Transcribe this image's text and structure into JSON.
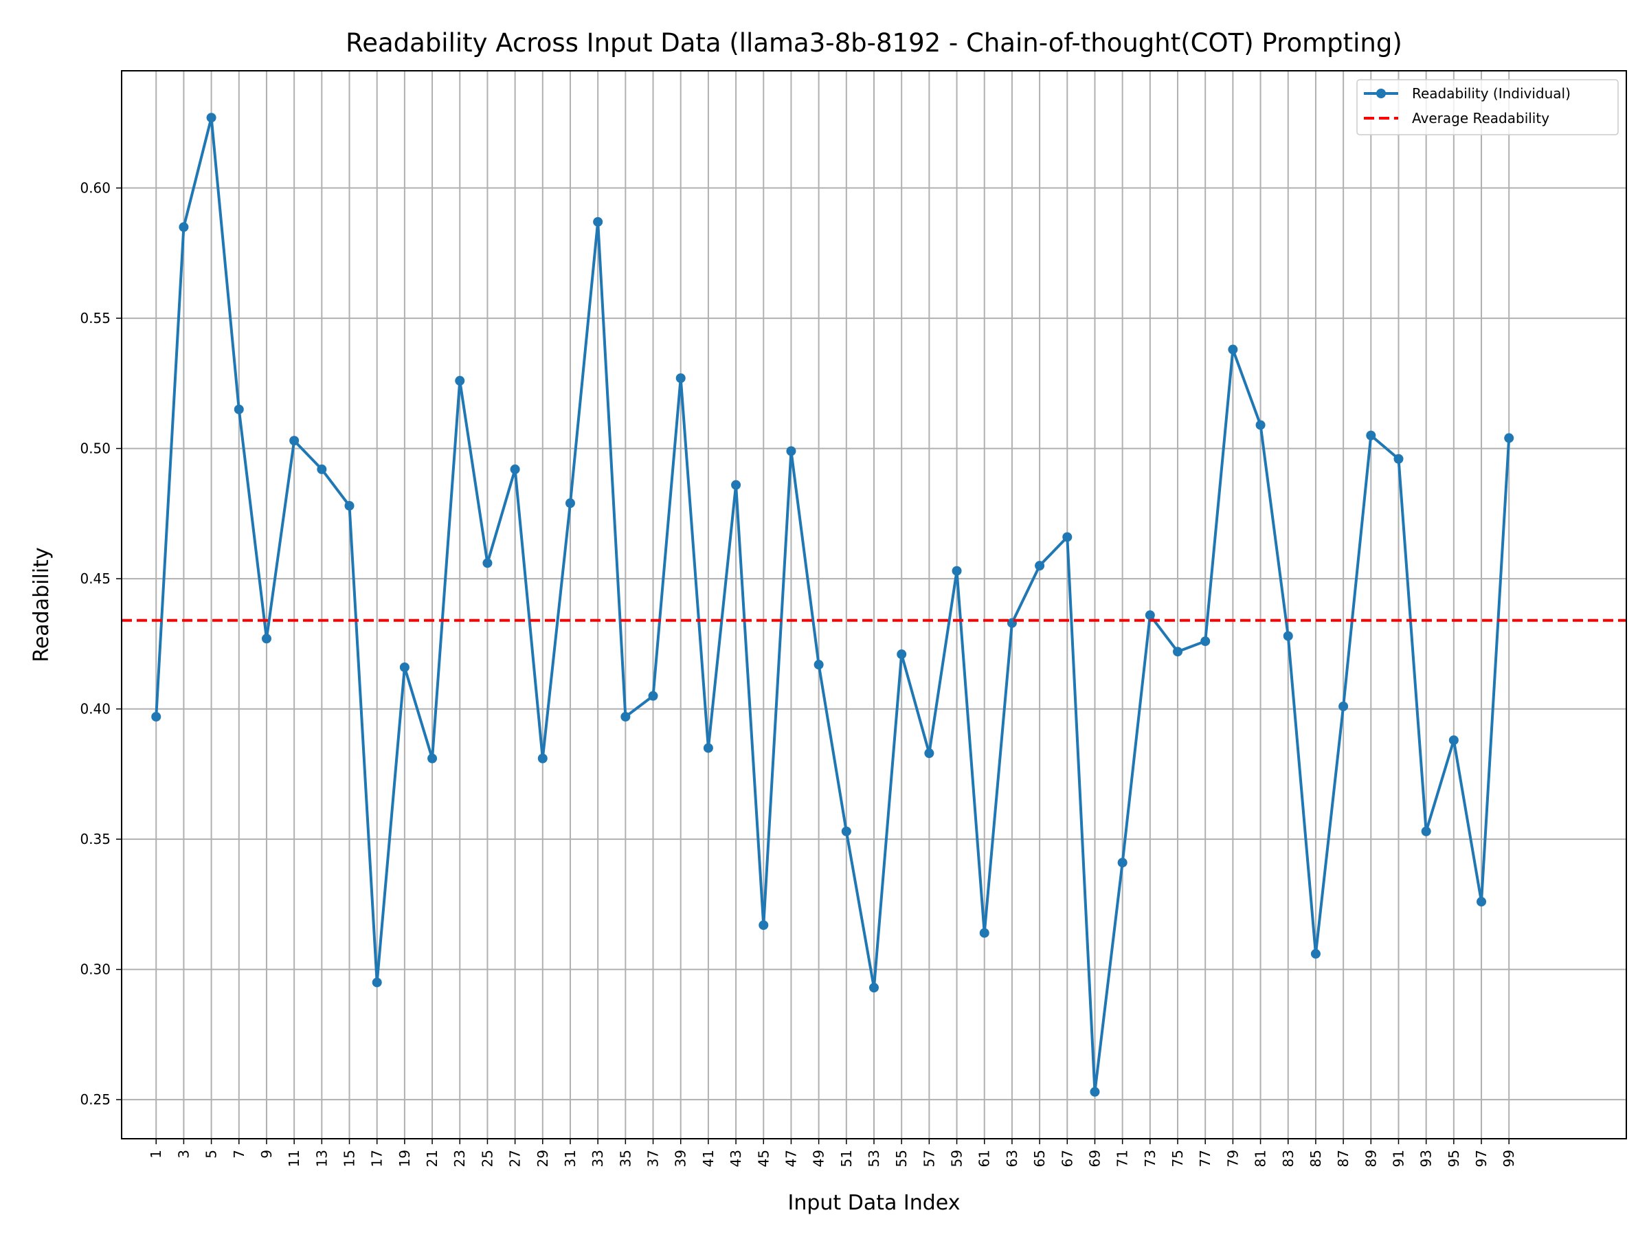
{
  "chart_data": {
    "type": "line",
    "title": "Readability Across Input Data (llama3-8b-8192 - Chain-of-thought(COT) Prompting)",
    "xlabel": "Input Data Index",
    "ylabel": "Readability",
    "xlim": [
      -1.5,
      107.5
    ],
    "ylim": [
      0.235,
      0.645
    ],
    "grid": true,
    "legend_position": "upper-right",
    "x_ticks": [
      1,
      3,
      5,
      7,
      9,
      11,
      13,
      15,
      17,
      19,
      21,
      23,
      25,
      27,
      29,
      31,
      33,
      35,
      37,
      39,
      41,
      43,
      45,
      47,
      49,
      51,
      53,
      55,
      57,
      59,
      61,
      63,
      65,
      67,
      69,
      71,
      73,
      75,
      77,
      79,
      81,
      83,
      85,
      87,
      89,
      91,
      93,
      95,
      97,
      99
    ],
    "y_ticks": [
      0.25,
      0.3,
      0.35,
      0.4,
      0.45,
      0.5,
      0.55,
      0.6
    ],
    "y_tick_labels": [
      "0.25",
      "0.30",
      "0.35",
      "0.40",
      "0.45",
      "0.50",
      "0.55",
      "0.60"
    ],
    "series": [
      {
        "name": "Readability (Individual)",
        "color": "#1f77b4",
        "style": "solid-with-markers",
        "x": [
          1,
          3,
          5,
          7,
          9,
          11,
          13,
          15,
          17,
          19,
          21,
          23,
          25,
          27,
          29,
          31,
          33,
          35,
          37,
          39,
          41,
          43,
          45,
          47,
          49,
          51,
          53,
          55,
          57,
          59,
          61,
          63,
          65,
          67,
          69,
          71,
          73,
          75,
          77,
          79,
          81,
          83,
          85,
          87,
          89,
          91,
          93,
          95,
          97,
          99
        ],
        "values": [
          0.397,
          0.585,
          0.627,
          0.515,
          0.427,
          0.503,
          0.492,
          0.478,
          0.295,
          0.416,
          0.381,
          0.526,
          0.456,
          0.492,
          0.381,
          0.479,
          0.587,
          0.397,
          0.405,
          0.527,
          0.385,
          0.486,
          0.317,
          0.499,
          0.417,
          0.353,
          0.293,
          0.421,
          0.383,
          0.453,
          0.314,
          0.433,
          0.455,
          0.466,
          0.253,
          0.341,
          0.436,
          0.422,
          0.426,
          0.538,
          0.509,
          0.428,
          0.306,
          0.401,
          0.505,
          0.496,
          0.353,
          0.388,
          0.326,
          0.504
        ]
      },
      {
        "name": "Average Readability",
        "color": "#ff0000",
        "style": "dashed",
        "value": 0.434
      }
    ]
  }
}
